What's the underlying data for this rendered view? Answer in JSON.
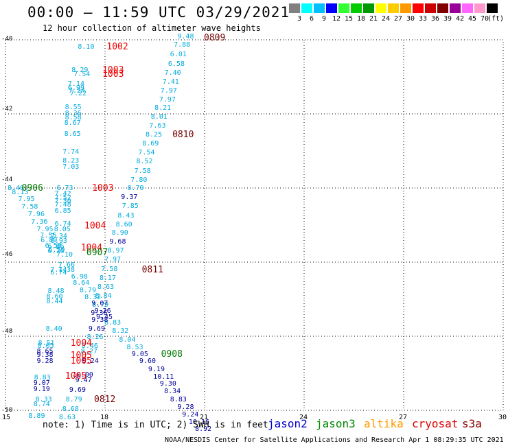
{
  "title": "00:00 – 11:59 UTC 03/29/2021",
  "subtitle": "12 hour collection of altimeter wave heights",
  "legend": {
    "unit": "(ft)",
    "swatches": [
      {
        "color": "#808080",
        "label": "3"
      },
      {
        "color": "#00ffff",
        "label": "6"
      },
      {
        "color": "#00bfff",
        "label": "9"
      },
      {
        "color": "#0000ff",
        "label": "12"
      },
      {
        "color": "#33ff33",
        "label": "15"
      },
      {
        "color": "#00cc00",
        "label": "18"
      },
      {
        "color": "#009900",
        "label": "21"
      },
      {
        "color": "#ffff00",
        "label": "24"
      },
      {
        "color": "#ffcc00",
        "label": "27"
      },
      {
        "color": "#ff9900",
        "label": "30"
      },
      {
        "color": "#ff0000",
        "label": "33"
      },
      {
        "color": "#cc0000",
        "label": "36"
      },
      {
        "color": "#800000",
        "label": "39"
      },
      {
        "color": "#990099",
        "label": "42"
      },
      {
        "color": "#ff66ff",
        "label": "45"
      },
      {
        "color": "#ff99cc",
        "label": "70"
      },
      {
        "color": "#000000",
        "label": ""
      }
    ]
  },
  "axes": {
    "lat_labels": [
      "-40",
      "-42",
      "-44",
      "-46",
      "-48",
      "-50"
    ],
    "lon_labels": [
      "15",
      "18",
      "21",
      "24",
      "27",
      "30"
    ]
  },
  "note": "note: 1) Time is in UTC; 2) SWH is in feet",
  "satellites": [
    {
      "name": "jason2",
      "color": "#0000cc"
    },
    {
      "name": "jason3",
      "color": "#008800"
    },
    {
      "name": "altika",
      "color": "#ff9900"
    },
    {
      "name": "cryosat",
      "color": "#dd0000"
    },
    {
      "name": "s3a",
      "color": "#880000"
    }
  ],
  "footer": "NOAA/NESDIS Center for Satellite Applications and Research   Apr  1 08:29:35 UTC 2021",
  "colors": {
    "cyan": "#00aadd",
    "blue": "#000099",
    "green": "#007700",
    "red": "#ee0000",
    "maroon": "#770000"
  },
  "observations": [
    {
      "t": "9.48",
      "c": "cyan",
      "lon": 20.43,
      "lat": -39.92
    },
    {
      "t": "7.88",
      "c": "cyan",
      "lon": 20.32,
      "lat": -40.15
    },
    {
      "t": "6.01",
      "c": "cyan",
      "lon": 20.21,
      "lat": -40.41
    },
    {
      "t": "6.58",
      "c": "cyan",
      "lon": 20.15,
      "lat": -40.66
    },
    {
      "t": "7.40",
      "c": "cyan",
      "lon": 20.04,
      "lat": -40.9
    },
    {
      "t": "7.41",
      "c": "cyan",
      "lon": 19.98,
      "lat": -41.15
    },
    {
      "t": "7.97",
      "c": "cyan",
      "lon": 19.92,
      "lat": -41.38
    },
    {
      "t": "7.97",
      "c": "cyan",
      "lon": 19.88,
      "lat": -41.63
    },
    {
      "t": "8.21",
      "c": "cyan",
      "lon": 19.74,
      "lat": -41.86
    },
    {
      "t": "8.01",
      "c": "cyan",
      "lon": 19.63,
      "lat": -42.09
    },
    {
      "t": "7.63",
      "c": "cyan",
      "lon": 19.58,
      "lat": -42.34
    },
    {
      "t": "8.25",
      "c": "cyan",
      "lon": 19.47,
      "lat": -42.57
    },
    {
      "t": "8.69",
      "c": "cyan",
      "lon": 19.37,
      "lat": -42.82
    },
    {
      "t": "7.54",
      "c": "cyan",
      "lon": 19.25,
      "lat": -43.06
    },
    {
      "t": "8.52",
      "c": "cyan",
      "lon": 19.19,
      "lat": -43.3
    },
    {
      "t": "7.58",
      "c": "cyan",
      "lon": 19.13,
      "lat": -43.55
    },
    {
      "t": "7.80",
      "c": "cyan",
      "lon": 19.02,
      "lat": -43.79
    },
    {
      "t": "8.79",
      "c": "cyan",
      "lon": 18.92,
      "lat": -44.02
    },
    {
      "t": "9.37",
      "c": "blue",
      "lon": 18.73,
      "lat": -44.25
    },
    {
      "t": "7.85",
      "c": "cyan",
      "lon": 18.76,
      "lat": -44.5
    },
    {
      "t": "8.43",
      "c": "cyan",
      "lon": 18.63,
      "lat": -44.75
    },
    {
      "t": "8.60",
      "c": "cyan",
      "lon": 18.57,
      "lat": -44.99
    },
    {
      "t": "8.90",
      "c": "cyan",
      "lon": 18.45,
      "lat": -45.23
    },
    {
      "t": "9.68",
      "c": "blue",
      "lon": 18.38,
      "lat": -45.47
    },
    {
      "t": "8.97",
      "c": "cyan",
      "lon": 18.32,
      "lat": -45.7
    },
    {
      "t": "7.97",
      "c": "cyan",
      "lon": 18.23,
      "lat": -45.95
    },
    {
      "t": "7.58",
      "c": "cyan",
      "lon": 18.13,
      "lat": -46.2
    },
    {
      "t": "8.17",
      "c": "cyan",
      "lon": 18.08,
      "lat": -46.44
    },
    {
      "t": "8.63",
      "c": "cyan",
      "lon": 18.02,
      "lat": -46.68
    },
    {
      "t": "8.84",
      "c": "cyan",
      "lon": 17.95,
      "lat": -46.92
    },
    {
      "t": "8.79",
      "c": "cyan",
      "lon": 17.86,
      "lat": -47.16
    },
    {
      "t": "9.36",
      "c": "blue",
      "lon": 17.82,
      "lat": -47.38
    },
    {
      "t": "9.45",
      "c": "blue",
      "lon": 17.98,
      "lat": -47.5
    },
    {
      "t": "8.83",
      "c": "cyan",
      "lon": 18.23,
      "lat": -47.64
    },
    {
      "t": "8.32",
      "c": "cyan",
      "lon": 18.46,
      "lat": -47.87
    },
    {
      "t": "8.04",
      "c": "cyan",
      "lon": 18.67,
      "lat": -48.11
    },
    {
      "t": "8.53",
      "c": "cyan",
      "lon": 18.9,
      "lat": -48.31
    },
    {
      "t": "9.05",
      "c": "blue",
      "lon": 19.05,
      "lat": -48.49
    },
    {
      "t": "9.60",
      "c": "blue",
      "lon": 19.28,
      "lat": -48.68
    },
    {
      "t": "9.19",
      "c": "blue",
      "lon": 19.55,
      "lat": -48.91
    },
    {
      "t": "10.11",
      "c": "blue",
      "lon": 19.7,
      "lat": -49.11
    },
    {
      "t": "9.30",
      "c": "blue",
      "lon": 19.9,
      "lat": -49.3
    },
    {
      "t": "8.34",
      "c": "blue",
      "lon": 20.03,
      "lat": -49.5
    },
    {
      "t": "8.83",
      "c": "blue",
      "lon": 20.21,
      "lat": -49.72
    },
    {
      "t": "9.28",
      "c": "blue",
      "lon": 20.43,
      "lat": -49.93
    },
    {
      "t": "9.24",
      "c": "blue",
      "lon": 20.57,
      "lat": -50.12
    },
    {
      "t": "10.16",
      "c": "blue",
      "lon": 20.77,
      "lat": -50.33
    },
    {
      "t": "8.92",
      "c": "blue",
      "lon": 20.96,
      "lat": -50.52
    },
    {
      "t": "8.10",
      "c": "cyan",
      "lon": 17.43,
      "lat": -40.2
    },
    {
      "t": "8.29",
      "c": "cyan",
      "lon": 17.24,
      "lat": -40.84
    },
    {
      "t": "7.54",
      "c": "cyan",
      "lon": 17.3,
      "lat": -40.95
    },
    {
      "t": "7.14",
      "c": "cyan",
      "lon": 17.13,
      "lat": -41.21
    },
    {
      "t": "6.99",
      "c": "cyan",
      "lon": 17.13,
      "lat": -41.31
    },
    {
      "t": "7.24",
      "c": "cyan",
      "lon": 17.15,
      "lat": -41.39
    },
    {
      "t": "7.22",
      "c": "cyan",
      "lon": 17.19,
      "lat": -41.47
    },
    {
      "t": "8.55",
      "c": "cyan",
      "lon": 17.04,
      "lat": -41.84
    },
    {
      "t": "8.36",
      "c": "cyan",
      "lon": 17.04,
      "lat": -42.0
    },
    {
      "t": "8.58",
      "c": "cyan",
      "lon": 17.04,
      "lat": -42.11
    },
    {
      "t": "8.67",
      "c": "cyan",
      "lon": 17.02,
      "lat": -42.26
    },
    {
      "t": "8.65",
      "c": "cyan",
      "lon": 17.02,
      "lat": -42.55
    },
    {
      "t": "7.74",
      "c": "cyan",
      "lon": 16.97,
      "lat": -43.04
    },
    {
      "t": "8.23",
      "c": "cyan",
      "lon": 16.97,
      "lat": -43.27
    },
    {
      "t": "7.03",
      "c": "cyan",
      "lon": 16.97,
      "lat": -43.44
    },
    {
      "t": "6.73",
      "c": "cyan",
      "lon": 16.79,
      "lat": -44.02
    },
    {
      "t": "7.42",
      "c": "cyan",
      "lon": 16.73,
      "lat": -44.17
    },
    {
      "t": "7.52",
      "c": "cyan",
      "lon": 16.73,
      "lat": -44.28
    },
    {
      "t": "7.30",
      "c": "cyan",
      "lon": 16.73,
      "lat": -44.37
    },
    {
      "t": "7.48",
      "c": "cyan",
      "lon": 16.73,
      "lat": -44.47
    },
    {
      "t": "6.85",
      "c": "cyan",
      "lon": 16.73,
      "lat": -44.62
    },
    {
      "t": "6.74",
      "c": "cyan",
      "lon": 16.73,
      "lat": -44.98
    },
    {
      "t": "8.05",
      "c": "cyan",
      "lon": 16.71,
      "lat": -45.13
    },
    {
      "t": "7.34",
      "c": "cyan",
      "lon": 16.61,
      "lat": -45.32
    },
    {
      "t": "6.93",
      "c": "cyan",
      "lon": 16.61,
      "lat": -45.45
    },
    {
      "t": "6.86",
      "c": "cyan",
      "lon": 16.52,
      "lat": -45.6
    },
    {
      "t": "6.76",
      "c": "cyan",
      "lon": 16.52,
      "lat": -45.73
    },
    {
      "t": "7.10",
      "c": "cyan",
      "lon": 16.78,
      "lat": -45.82
    },
    {
      "t": "7.66",
      "c": "cyan",
      "lon": 16.84,
      "lat": -46.09
    },
    {
      "t": "7.38",
      "c": "cyan",
      "lon": 16.84,
      "lat": -46.22
    },
    {
      "t": "6.98",
      "c": "cyan",
      "lon": 17.23,
      "lat": -46.4
    },
    {
      "t": "8.64",
      "c": "cyan",
      "lon": 17.28,
      "lat": -46.58
    },
    {
      "t": "8.79",
      "c": "cyan",
      "lon": 17.48,
      "lat": -46.78
    },
    {
      "t": "8.32",
      "c": "cyan",
      "lon": 17.63,
      "lat": -46.97
    },
    {
      "t": "9.07",
      "c": "blue",
      "lon": 17.84,
      "lat": -47.13
    },
    {
      "t": "9.26",
      "c": "blue",
      "lon": 17.93,
      "lat": -47.33
    },
    {
      "t": "9.38",
      "c": "blue",
      "lon": 17.84,
      "lat": -47.57
    },
    {
      "t": "9.69",
      "c": "blue",
      "lon": 17.75,
      "lat": -47.82
    },
    {
      "t": "8.26",
      "c": "cyan",
      "lon": 17.7,
      "lat": -48.03
    },
    {
      "t": "8.46",
      "c": "cyan",
      "lon": 17.54,
      "lat": -48.27
    },
    {
      "t": "8.27",
      "c": "cyan",
      "lon": 17.52,
      "lat": -48.42
    },
    {
      "t": "9.24",
      "c": "blue",
      "lon": 17.56,
      "lat": -48.68
    },
    {
      "t": "10.00",
      "c": "blue",
      "lon": 17.27,
      "lat": -49.05
    },
    {
      "t": "9.47",
      "c": "blue",
      "lon": 17.35,
      "lat": -49.21
    },
    {
      "t": "9.69",
      "c": "blue",
      "lon": 17.17,
      "lat": -49.46
    },
    {
      "t": "8.79",
      "c": "cyan",
      "lon": 17.06,
      "lat": -49.72
    },
    {
      "t": "8.68",
      "c": "cyan",
      "lon": 16.96,
      "lat": -49.98
    },
    {
      "t": "8.63",
      "c": "cyan",
      "lon": 16.86,
      "lat": -50.21
    },
    {
      "t": "8.40",
      "c": "cyan",
      "lon": 15.31,
      "lat": -44.02
    },
    {
      "t": "8.13",
      "c": "cyan",
      "lon": 15.44,
      "lat": -44.12
    },
    {
      "t": "7.95",
      "c": "cyan",
      "lon": 15.63,
      "lat": -44.32
    },
    {
      "t": "7.58",
      "c": "cyan",
      "lon": 15.73,
      "lat": -44.52
    },
    {
      "t": "7.96",
      "c": "cyan",
      "lon": 15.93,
      "lat": -44.72
    },
    {
      "t": "7.36",
      "c": "cyan",
      "lon": 16.02,
      "lat": -44.92
    },
    {
      "t": "7.95",
      "c": "cyan",
      "lon": 16.19,
      "lat": -45.12
    },
    {
      "t": "7.55",
      "c": "cyan",
      "lon": 16.29,
      "lat": -45.29
    },
    {
      "t": "6.89",
      "c": "cyan",
      "lon": 16.31,
      "lat": -45.43
    },
    {
      "t": "6.58",
      "c": "cyan",
      "lon": 16.44,
      "lat": -45.57
    },
    {
      "t": "6.59",
      "c": "cyan",
      "lon": 16.54,
      "lat": -45.69
    },
    {
      "t": "7.14",
      "c": "cyan",
      "lon": 16.6,
      "lat": -46.22
    },
    {
      "t": "6.74",
      "c": "cyan",
      "lon": 16.6,
      "lat": -46.3
    },
    {
      "t": "8.48",
      "c": "cyan",
      "lon": 16.52,
      "lat": -46.79
    },
    {
      "t": "8.60",
      "c": "cyan",
      "lon": 16.48,
      "lat": -46.95
    },
    {
      "t": "8.44",
      "c": "cyan",
      "lon": 16.48,
      "lat": -47.08
    },
    {
      "t": "8.40",
      "c": "cyan",
      "lon": 16.46,
      "lat": -47.81
    },
    {
      "t": "8.51",
      "c": "cyan",
      "lon": 16.23,
      "lat": -48.2
    },
    {
      "t": "8.05",
      "c": "cyan",
      "lon": 16.21,
      "lat": -48.27
    },
    {
      "t": "8.65",
      "c": "blue",
      "lon": 16.19,
      "lat": -48.42
    },
    {
      "t": "9.38",
      "c": "blue",
      "lon": 16.19,
      "lat": -48.51
    },
    {
      "t": "9.28",
      "c": "blue",
      "lon": 16.19,
      "lat": -48.68
    },
    {
      "t": "8.83",
      "c": "cyan",
      "lon": 16.11,
      "lat": -49.12
    },
    {
      "t": "9.07",
      "c": "blue",
      "lon": 16.09,
      "lat": -49.28
    },
    {
      "t": "9.19",
      "c": "blue",
      "lon": 16.09,
      "lat": -49.44
    },
    {
      "t": "8.33",
      "c": "cyan",
      "lon": 16.15,
      "lat": -49.73
    },
    {
      "t": "8.74",
      "c": "cyan",
      "lon": 16.09,
      "lat": -49.85
    },
    {
      "t": "8.89",
      "c": "cyan",
      "lon": 15.94,
      "lat": -50.17
    }
  ],
  "events": [
    {
      "t": "0809",
      "c": "maroon",
      "lon": 21.31,
      "lat": -39.96
    },
    {
      "t": "1002",
      "c": "red",
      "lon": 18.38,
      "lat": -40.21
    },
    {
      "t": "1003",
      "c": "red",
      "lon": 18.25,
      "lat": -40.83
    },
    {
      "t": "1003",
      "c": "red",
      "lon": 18.25,
      "lat": -40.95
    },
    {
      "t": "0810",
      "c": "maroon",
      "lon": 20.36,
      "lat": -42.57
    },
    {
      "t": "0906",
      "c": "green",
      "lon": 15.82,
      "lat": -44.02
    },
    {
      "t": "1003",
      "c": "red",
      "lon": 17.94,
      "lat": -44.02
    },
    {
      "t": "1004",
      "c": "red",
      "lon": 17.71,
      "lat": -45.04
    },
    {
      "t": "1004",
      "c": "red",
      "lon": 17.6,
      "lat": -45.63
    },
    {
      "t": "0907",
      "c": "green",
      "lon": 17.77,
      "lat": -45.75
    },
    {
      "t": "0811",
      "c": "maroon",
      "lon": 19.44,
      "lat": -46.22
    },
    {
      "t": "0908",
      "c": "green",
      "lon": 20.02,
      "lat": -48.49
    },
    {
      "t": "1004",
      "c": "red",
      "lon": 17.29,
      "lat": -48.2
    },
    {
      "t": "1005",
      "c": "red",
      "lon": 17.29,
      "lat": -48.54
    },
    {
      "t": "1005",
      "c": "red",
      "lon": 17.29,
      "lat": -48.68
    },
    {
      "t": "1005",
      "c": "red",
      "lon": 17.13,
      "lat": -49.09
    },
    {
      "t": "0812",
      "c": "maroon",
      "lon": 18.0,
      "lat": -49.72
    }
  ]
}
